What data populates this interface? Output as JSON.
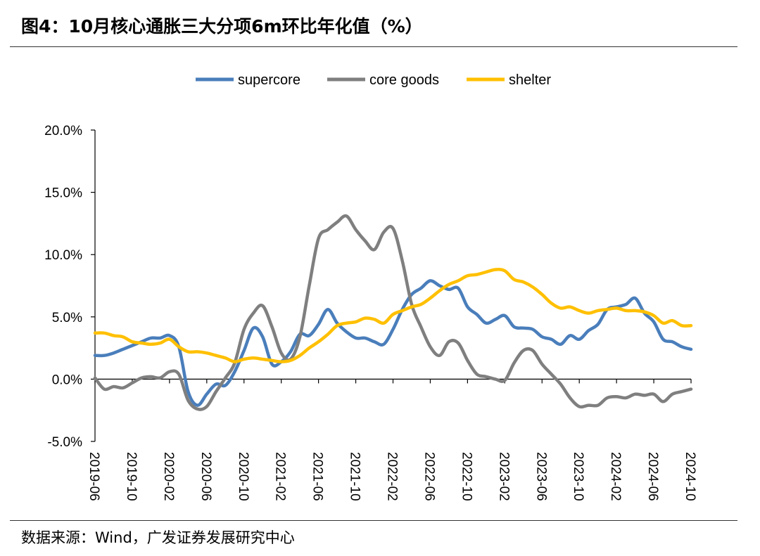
{
  "title": "图4：10月核心通胀三大分项6m环比年化值（%）",
  "source": "数据来源：Wind，广发证券发展研究中心",
  "chart_data": {
    "type": "line",
    "x_ticks": [
      "2019-06",
      "2019-10",
      "2020-02",
      "2020-06",
      "2020-10",
      "2021-02",
      "2021-06",
      "2021-10",
      "2022-02",
      "2022-06",
      "2022-10",
      "2023-02",
      "2023-06",
      "2023-10",
      "2024-02",
      "2024-06",
      "2024-10"
    ],
    "x_range": [
      "2019-06",
      "2024-10"
    ],
    "y_ticks": [
      "20.0%",
      "15.0%",
      "10.0%",
      "5.0%",
      "0.0%",
      "-5.0%"
    ],
    "ylim": [
      -5,
      20
    ],
    "y_unit": "%",
    "legend_position": "top",
    "grid": false,
    "series": [
      {
        "name": "supercore",
        "color": "#4a7ebb",
        "points": [
          [
            "2019-06",
            1.9
          ],
          [
            "2019-07",
            1.9
          ],
          [
            "2019-08",
            2.1
          ],
          [
            "2019-09",
            2.4
          ],
          [
            "2019-10",
            2.7
          ],
          [
            "2019-11",
            3.0
          ],
          [
            "2019-12",
            3.3
          ],
          [
            "2020-01",
            3.3
          ],
          [
            "2020-02",
            3.5
          ],
          [
            "2020-03",
            2.6
          ],
          [
            "2020-04",
            -1.0
          ],
          [
            "2020-05",
            -2.1
          ],
          [
            "2020-06",
            -1.2
          ],
          [
            "2020-07",
            -0.4
          ],
          [
            "2020-08",
            -0.5
          ],
          [
            "2020-09",
            0.6
          ],
          [
            "2020-10",
            2.3
          ],
          [
            "2020-11",
            4.1
          ],
          [
            "2020-12",
            3.4
          ],
          [
            "2021-01",
            1.2
          ],
          [
            "2021-02",
            1.4
          ],
          [
            "2021-03",
            2.2
          ],
          [
            "2021-04",
            3.6
          ],
          [
            "2021-05",
            3.5
          ],
          [
            "2021-06",
            4.4
          ],
          [
            "2021-07",
            5.6
          ],
          [
            "2021-08",
            4.5
          ],
          [
            "2021-09",
            3.8
          ],
          [
            "2021-10",
            3.3
          ],
          [
            "2021-11",
            3.3
          ],
          [
            "2021-12",
            3.0
          ],
          [
            "2022-01",
            2.8
          ],
          [
            "2022-02",
            4.0
          ],
          [
            "2022-03",
            5.6
          ],
          [
            "2022-04",
            6.8
          ],
          [
            "2022-05",
            7.3
          ],
          [
            "2022-06",
            7.9
          ],
          [
            "2022-07",
            7.5
          ],
          [
            "2022-08",
            7.2
          ],
          [
            "2022-09",
            7.3
          ],
          [
            "2022-10",
            5.8
          ],
          [
            "2022-11",
            5.2
          ],
          [
            "2022-12",
            4.5
          ],
          [
            "2023-01",
            4.8
          ],
          [
            "2023-02",
            5.1
          ],
          [
            "2023-03",
            4.2
          ],
          [
            "2023-04",
            4.1
          ],
          [
            "2023-05",
            4.0
          ],
          [
            "2023-06",
            3.4
          ],
          [
            "2023-07",
            3.2
          ],
          [
            "2023-08",
            2.8
          ],
          [
            "2023-09",
            3.5
          ],
          [
            "2023-10",
            3.2
          ],
          [
            "2023-11",
            3.9
          ],
          [
            "2023-12",
            4.4
          ],
          [
            "2024-01",
            5.6
          ],
          [
            "2024-02",
            5.8
          ],
          [
            "2024-03",
            6.0
          ],
          [
            "2024-04",
            6.5
          ],
          [
            "2024-05",
            5.3
          ],
          [
            "2024-06",
            4.6
          ],
          [
            "2024-07",
            3.2
          ],
          [
            "2024-08",
            3.0
          ],
          [
            "2024-09",
            2.6
          ],
          [
            "2024-10",
            2.4
          ]
        ]
      },
      {
        "name": "core goods",
        "color": "#7f7f7f",
        "points": [
          [
            "2019-06",
            0.1
          ],
          [
            "2019-07",
            -0.8
          ],
          [
            "2019-08",
            -0.6
          ],
          [
            "2019-09",
            -0.7
          ],
          [
            "2019-10",
            -0.3
          ],
          [
            "2019-11",
            0.1
          ],
          [
            "2019-12",
            0.2
          ],
          [
            "2020-01",
            0.1
          ],
          [
            "2020-02",
            0.6
          ],
          [
            "2020-03",
            0.4
          ],
          [
            "2020-04",
            -1.7
          ],
          [
            "2020-05",
            -2.4
          ],
          [
            "2020-06",
            -2.2
          ],
          [
            "2020-07",
            -1.0
          ],
          [
            "2020-08",
            0.1
          ],
          [
            "2020-09",
            1.3
          ],
          [
            "2020-10",
            4.0
          ],
          [
            "2020-11",
            5.3
          ],
          [
            "2020-12",
            5.9
          ],
          [
            "2021-01",
            4.2
          ],
          [
            "2021-02",
            2.1
          ],
          [
            "2021-03",
            1.6
          ],
          [
            "2021-04",
            3.4
          ],
          [
            "2021-05",
            7.5
          ],
          [
            "2021-06",
            11.3
          ],
          [
            "2021-07",
            12.0
          ],
          [
            "2021-08",
            12.6
          ],
          [
            "2021-09",
            13.1
          ],
          [
            "2021-10",
            12.0
          ],
          [
            "2021-11",
            11.1
          ],
          [
            "2021-12",
            10.4
          ],
          [
            "2022-01",
            11.8
          ],
          [
            "2022-02",
            12.1
          ],
          [
            "2022-03",
            9.5
          ],
          [
            "2022-04",
            6.0
          ],
          [
            "2022-05",
            4.2
          ],
          [
            "2022-06",
            2.6
          ],
          [
            "2022-07",
            1.9
          ],
          [
            "2022-08",
            3.0
          ],
          [
            "2022-09",
            2.9
          ],
          [
            "2022-10",
            1.5
          ],
          [
            "2022-11",
            0.4
          ],
          [
            "2022-12",
            0.2
          ],
          [
            "2023-01",
            0.0
          ],
          [
            "2023-02",
            -0.1
          ],
          [
            "2023-03",
            1.3
          ],
          [
            "2023-04",
            2.3
          ],
          [
            "2023-05",
            2.3
          ],
          [
            "2023-06",
            1.2
          ],
          [
            "2023-07",
            0.4
          ],
          [
            "2023-08",
            -0.4
          ],
          [
            "2023-09",
            -1.5
          ],
          [
            "2023-10",
            -2.2
          ],
          [
            "2023-11",
            -2.1
          ],
          [
            "2023-12",
            -2.1
          ],
          [
            "2024-01",
            -1.5
          ],
          [
            "2024-02",
            -1.4
          ],
          [
            "2024-03",
            -1.5
          ],
          [
            "2024-04",
            -1.2
          ],
          [
            "2024-05",
            -1.3
          ],
          [
            "2024-06",
            -1.2
          ],
          [
            "2024-07",
            -1.8
          ],
          [
            "2024-08",
            -1.2
          ],
          [
            "2024-09",
            -1.0
          ],
          [
            "2024-10",
            -0.8
          ]
        ]
      },
      {
        "name": "shelter",
        "color": "#ffc000",
        "points": [
          [
            "2019-06",
            3.7
          ],
          [
            "2019-07",
            3.7
          ],
          [
            "2019-08",
            3.5
          ],
          [
            "2019-09",
            3.4
          ],
          [
            "2019-10",
            3.0
          ],
          [
            "2019-11",
            2.9
          ],
          [
            "2019-12",
            2.8
          ],
          [
            "2020-01",
            2.9
          ],
          [
            "2020-02",
            3.2
          ],
          [
            "2020-03",
            2.6
          ],
          [
            "2020-04",
            2.2
          ],
          [
            "2020-05",
            2.2
          ],
          [
            "2020-06",
            2.1
          ],
          [
            "2020-07",
            1.9
          ],
          [
            "2020-08",
            1.7
          ],
          [
            "2020-09",
            1.4
          ],
          [
            "2020-10",
            1.6
          ],
          [
            "2020-11",
            1.7
          ],
          [
            "2020-12",
            1.6
          ],
          [
            "2021-01",
            1.5
          ],
          [
            "2021-02",
            1.4
          ],
          [
            "2021-03",
            1.5
          ],
          [
            "2021-04",
            1.9
          ],
          [
            "2021-05",
            2.5
          ],
          [
            "2021-06",
            3.0
          ],
          [
            "2021-07",
            3.6
          ],
          [
            "2021-08",
            4.3
          ],
          [
            "2021-09",
            4.5
          ],
          [
            "2021-10",
            4.6
          ],
          [
            "2021-11",
            4.9
          ],
          [
            "2021-12",
            4.8
          ],
          [
            "2022-01",
            4.5
          ],
          [
            "2022-02",
            5.2
          ],
          [
            "2022-03",
            5.5
          ],
          [
            "2022-04",
            5.8
          ],
          [
            "2022-05",
            6.0
          ],
          [
            "2022-06",
            6.5
          ],
          [
            "2022-07",
            7.1
          ],
          [
            "2022-08",
            7.6
          ],
          [
            "2022-09",
            7.9
          ],
          [
            "2022-10",
            8.3
          ],
          [
            "2022-11",
            8.4
          ],
          [
            "2022-12",
            8.6
          ],
          [
            "2023-01",
            8.8
          ],
          [
            "2023-02",
            8.7
          ],
          [
            "2023-03",
            8.0
          ],
          [
            "2023-04",
            7.8
          ],
          [
            "2023-05",
            7.4
          ],
          [
            "2023-06",
            6.8
          ],
          [
            "2023-07",
            6.1
          ],
          [
            "2023-08",
            5.7
          ],
          [
            "2023-09",
            5.8
          ],
          [
            "2023-10",
            5.5
          ],
          [
            "2023-11",
            5.3
          ],
          [
            "2023-12",
            5.5
          ],
          [
            "2024-01",
            5.6
          ],
          [
            "2024-02",
            5.7
          ],
          [
            "2024-03",
            5.5
          ],
          [
            "2024-04",
            5.5
          ],
          [
            "2024-05",
            5.4
          ],
          [
            "2024-06",
            5.1
          ],
          [
            "2024-07",
            4.5
          ],
          [
            "2024-08",
            4.7
          ],
          [
            "2024-09",
            4.3
          ],
          [
            "2024-10",
            4.3
          ]
        ]
      }
    ]
  }
}
